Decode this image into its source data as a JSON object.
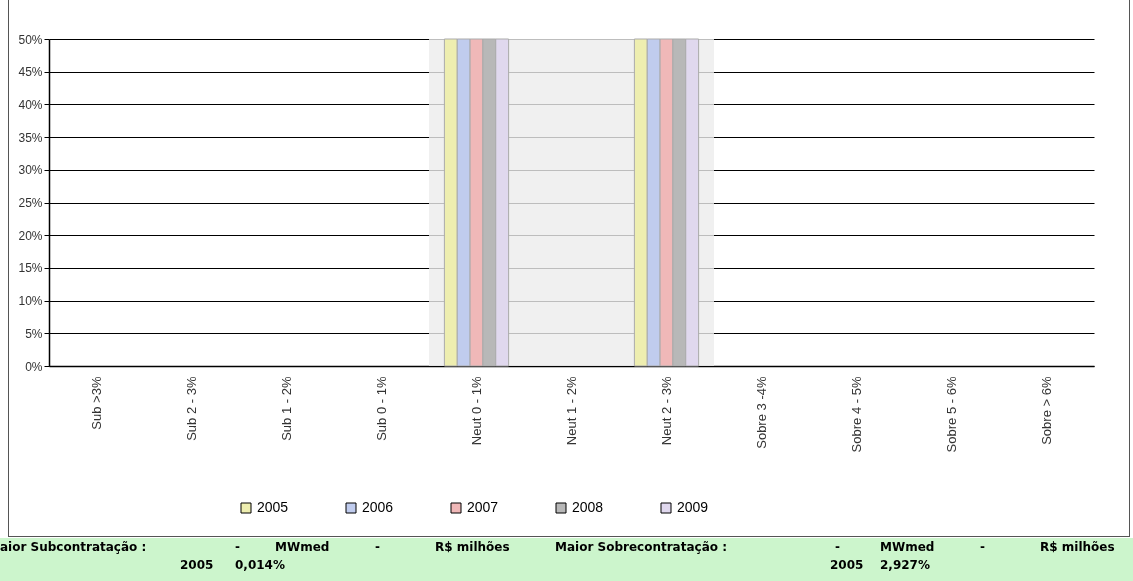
{
  "chart_data": {
    "type": "bar",
    "categories": [
      "Sub >3%",
      "Sub 2 - 3%",
      "Sub 1 - 2%",
      "Sub 0 - 1%",
      "Neut 0 - 1%",
      "Neut 1 - 2%",
      "Neut 2 - 3%",
      "Sobre 3 -4%",
      "Sobre 4 - 5%",
      "Sobre 5 - 6%",
      "Sobre > 6%"
    ],
    "series": [
      {
        "name": "2005",
        "color": "#eeeeb0",
        "values": [
          0,
          0,
          0,
          0,
          50,
          0,
          50,
          0,
          0,
          0,
          0
        ]
      },
      {
        "name": "2006",
        "color": "#c0ccee",
        "values": [
          0,
          0,
          0,
          0,
          50,
          0,
          50,
          0,
          0,
          0,
          0
        ]
      },
      {
        "name": "2007",
        "color": "#f0b8b8",
        "values": [
          0,
          0,
          0,
          0,
          50,
          0,
          50,
          0,
          0,
          0,
          0
        ]
      },
      {
        "name": "2008",
        "color": "#b8b8b8",
        "values": [
          0,
          0,
          0,
          0,
          50,
          0,
          50,
          0,
          0,
          0,
          0
        ]
      },
      {
        "name": "2009",
        "color": "#e0d8ee",
        "values": [
          0,
          0,
          0,
          0,
          50,
          0,
          50,
          0,
          0,
          0,
          0
        ]
      }
    ],
    "ylim": [
      0,
      50
    ],
    "yticks": [
      {
        "value": 0,
        "label": "0%"
      },
      {
        "value": 5,
        "label": "5%"
      },
      {
        "value": 10,
        "label": "10%"
      },
      {
        "value": 15,
        "label": "15%"
      },
      {
        "value": 20,
        "label": "20%"
      },
      {
        "value": 25,
        "label": "25%"
      },
      {
        "value": 30,
        "label": "30%"
      },
      {
        "value": 35,
        "label": "35%"
      },
      {
        "value": 40,
        "label": "40%"
      },
      {
        "value": 45,
        "label": "45%"
      },
      {
        "value": 50,
        "label": "50%"
      }
    ],
    "bands": [
      {
        "axis": "x",
        "from": "Neut 0 - 1%",
        "to": "Neut 2 - 3%",
        "color": "#ececec"
      }
    ],
    "grid": "y",
    "legend": "bottom",
    "annotations": [
      "aior Subcontratação :",
      "-",
      "MWmed",
      "-",
      "R$ milhões",
      "Maior Sobrecontratação :",
      "-",
      "MWmed",
      "-",
      "R$ milhões",
      "2005",
      "0,014%",
      "2005",
      "2,927%"
    ]
  }
}
